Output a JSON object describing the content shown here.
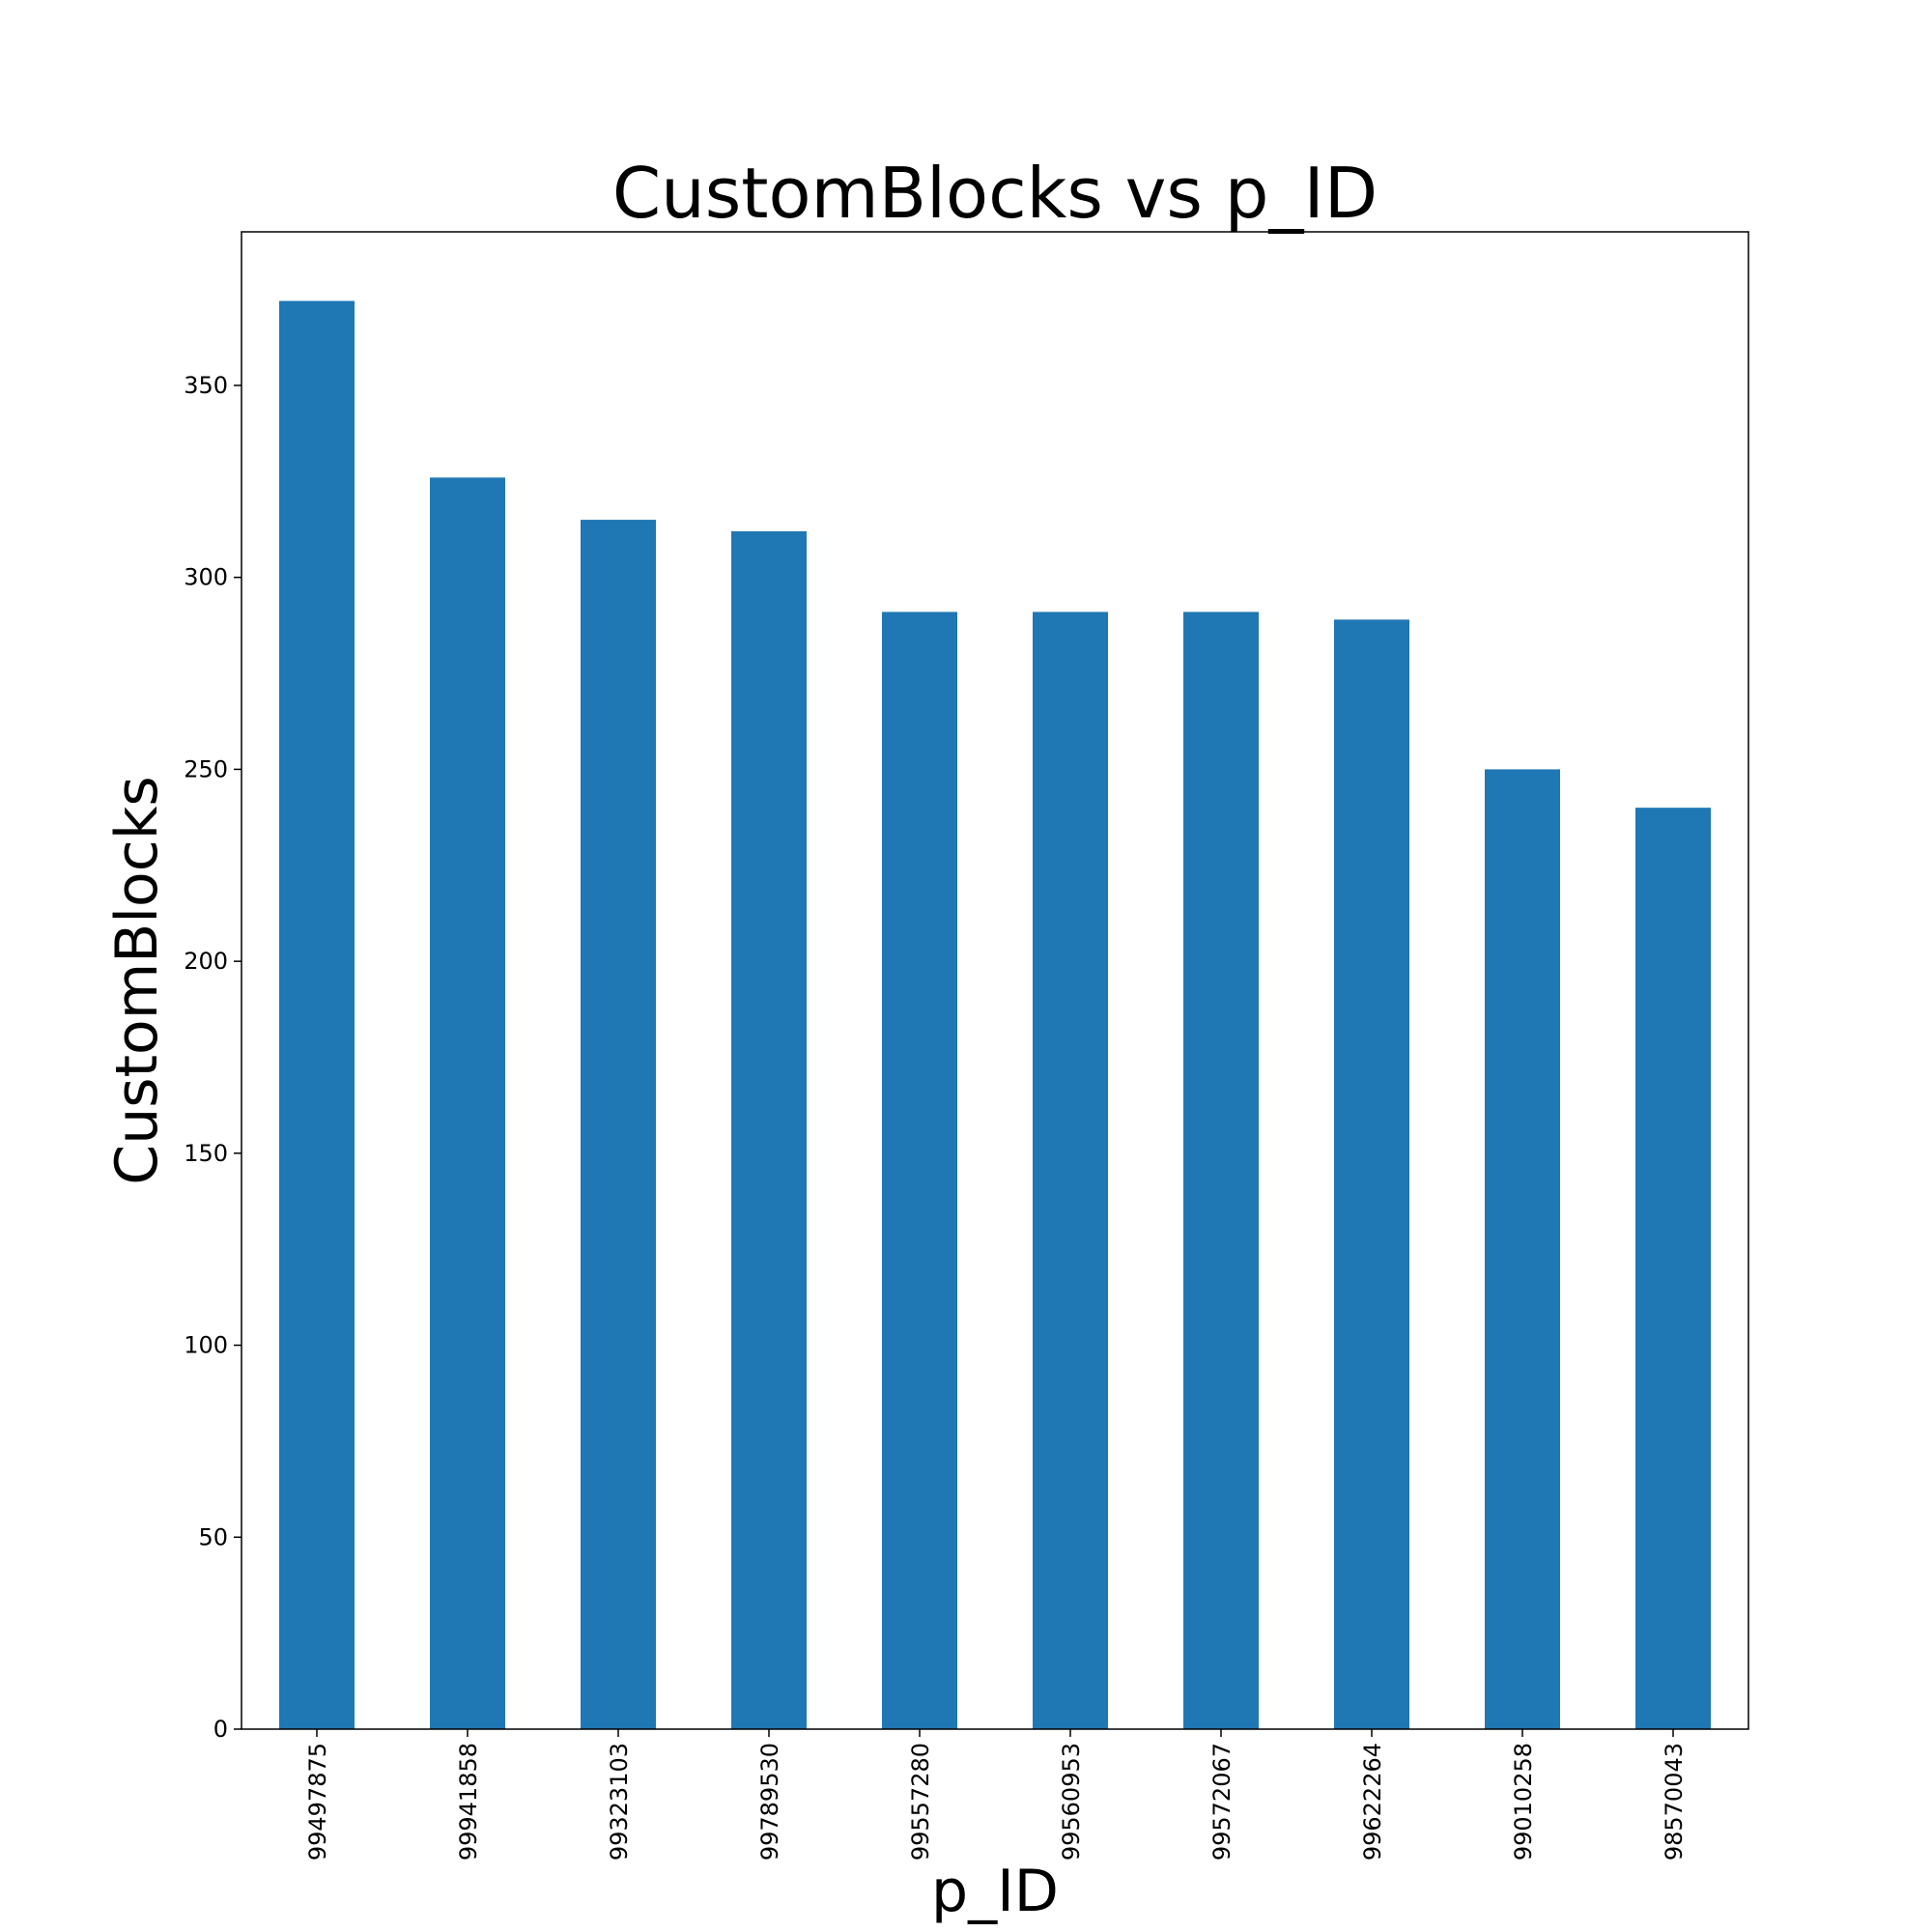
{
  "chart_data": {
    "type": "bar",
    "title": "CustomBlocks vs p_ID",
    "xlabel": "p_ID",
    "ylabel": "CustomBlocks",
    "categories": [
      "99497875",
      "99941858",
      "99323103",
      "99789530",
      "99557280",
      "99560953",
      "99572067",
      "99622264",
      "99010258",
      "98570043"
    ],
    "values": [
      372,
      326,
      315,
      312,
      291,
      291,
      291,
      289,
      250,
      240
    ],
    "ylim": [
      0,
      390
    ],
    "yticks": [
      0,
      50,
      100,
      150,
      200,
      250,
      300,
      350
    ],
    "bar_color": "#1f77b4",
    "grid": false,
    "legend": "none"
  }
}
